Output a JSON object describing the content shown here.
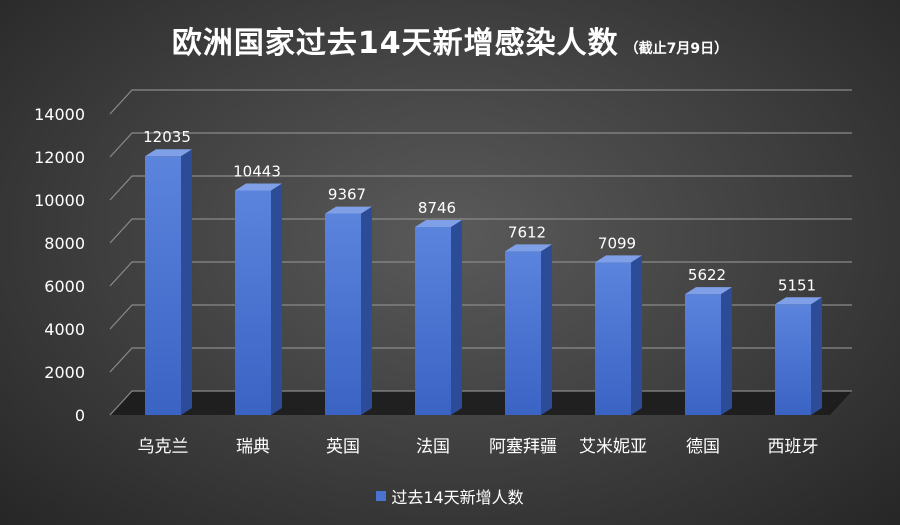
{
  "chart_data": {
    "type": "bar",
    "title": "欧洲国家过去14天新增感染人数",
    "subtitle": "（截止7月9日）",
    "categories": [
      "乌克兰",
      "瑞典",
      "英国",
      "法国",
      "阿塞拜疆",
      "艾米妮亚",
      "德国",
      "西班牙"
    ],
    "series": [
      {
        "name": "过去14天新增人数",
        "values": [
          12035,
          10443,
          9367,
          8746,
          7612,
          7099,
          5622,
          5151
        ]
      }
    ],
    "ylim": [
      0,
      14000
    ],
    "yticks": [
      0,
      2000,
      4000,
      6000,
      8000,
      10000,
      12000,
      14000
    ],
    "xlabel": "",
    "ylabel": "",
    "grid": true,
    "legend_position": "bottom",
    "style": "3d-column",
    "colors": {
      "bar_front": "#4a73d0",
      "bar_side": "#2c4c97",
      "bar_top": "#7f9fe6",
      "grid": "#8a8a8a",
      "floor": "#1a1a1a"
    }
  }
}
